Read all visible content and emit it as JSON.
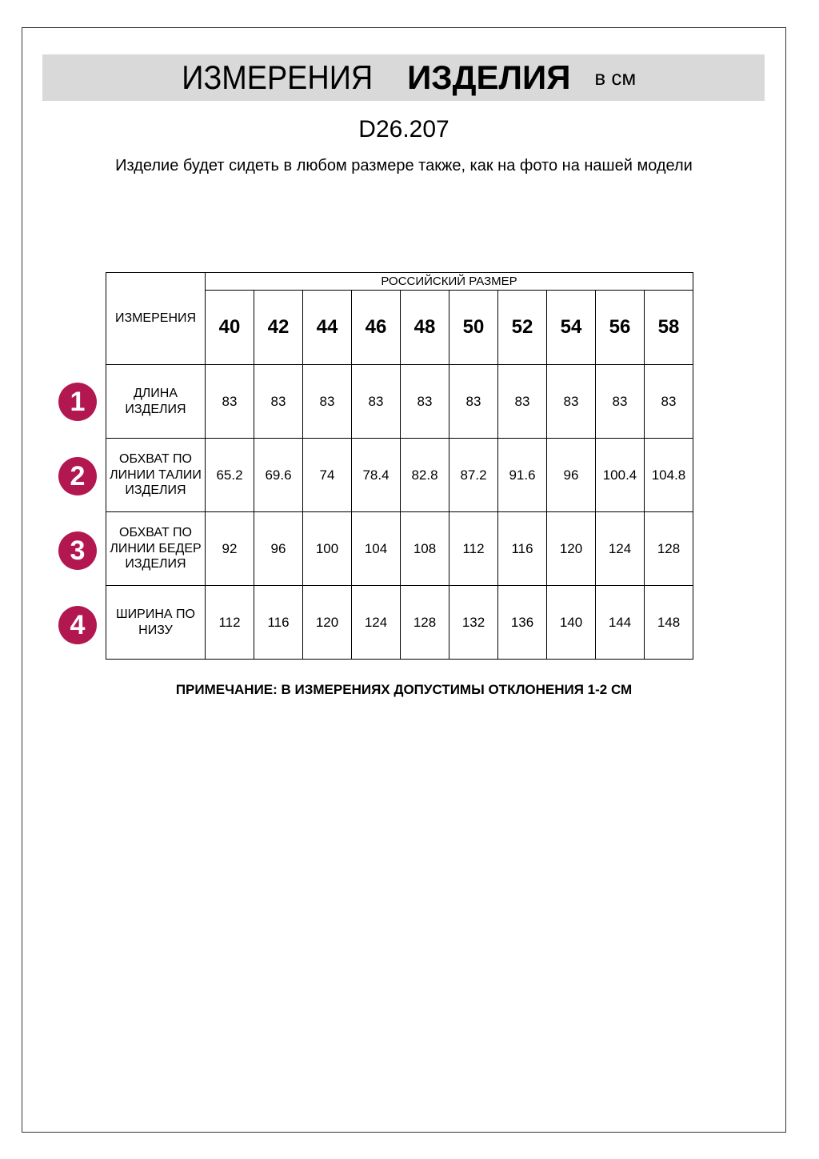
{
  "header": {
    "title_regular": "ИЗМЕРЕНИЯ",
    "title_bold": "ИЗДЕЛИЯ",
    "unit": "в см"
  },
  "product_code": "D26.207",
  "description": "Изделие будет сидеть в любом размере также, как на фото на нашей модели",
  "table": {
    "corner_label": "ИЗМЕРЕНИЯ",
    "group_header": "РОССИЙСКИЙ РАЗМЕР",
    "sizes": [
      "40",
      "42",
      "44",
      "46",
      "48",
      "50",
      "52",
      "54",
      "56",
      "58"
    ],
    "rows": [
      {
        "num": "1",
        "label": "ДЛИНА ИЗДЕЛИЯ",
        "values": [
          "83",
          "83",
          "83",
          "83",
          "83",
          "83",
          "83",
          "83",
          "83",
          "83"
        ]
      },
      {
        "num": "2",
        "label": "ОБХВАТ ПО ЛИНИИ ТАЛИИ ИЗДЕЛИЯ",
        "values": [
          "65.2",
          "69.6",
          "74",
          "78.4",
          "82.8",
          "87.2",
          "91.6",
          "96",
          "100.4",
          "104.8"
        ]
      },
      {
        "num": "3",
        "label": "ОБХВАТ ПО ЛИНИИ БЕДЕР ИЗДЕЛИЯ",
        "values": [
          "92",
          "96",
          "100",
          "104",
          "108",
          "112",
          "116",
          "120",
          "124",
          "128"
        ]
      },
      {
        "num": "4",
        "label": "ШИРИНА ПО НИЗУ",
        "values": [
          "112",
          "116",
          "120",
          "124",
          "128",
          "132",
          "136",
          "140",
          "144",
          "148"
        ]
      }
    ]
  },
  "note": "ПРИМЕЧАНИЕ: В ИЗМЕРЕНИЯХ ДОПУСТИМЫ ОТКЛОНЕНИЯ 1-2 СМ",
  "colors": {
    "badge": "#b3174f",
    "band": "#d9d9d9"
  }
}
